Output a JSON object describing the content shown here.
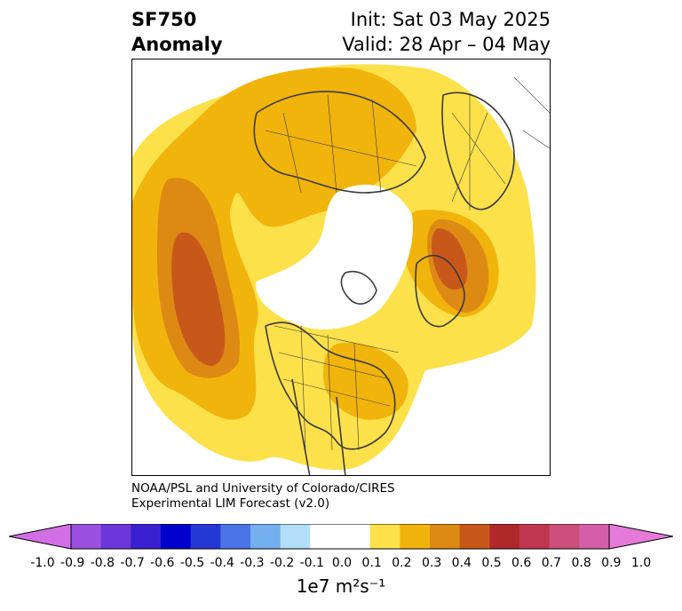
{
  "header": {
    "title_line1": "SF750",
    "title_line2": "Anomaly",
    "init_text": "Init: Sat 03 May 2025",
    "valid_text": "Valid: 28 Apr – 04 May"
  },
  "credit": {
    "line1": "NOAA/PSL and University of Colorado/CIRES",
    "line2": "Experimental LIM Forecast (v2.0)"
  },
  "colorbar": {
    "ticks": [
      "-1.0",
      "-0.9",
      "-0.8",
      "-0.7",
      "-0.6",
      "-0.5",
      "-0.4",
      "-0.3",
      "-0.2",
      "-0.1",
      "0.0",
      "0.1",
      "0.2",
      "0.3",
      "0.4",
      "0.5",
      "0.6",
      "0.7",
      "0.8",
      "0.9",
      "1.0"
    ],
    "colors": [
      "#d26fe6",
      "#9b50e0",
      "#6c36db",
      "#3a1fd1",
      "#0000cc",
      "#2538d6",
      "#4a74e6",
      "#74afef",
      "#b3def9",
      "#ffffff",
      "#ffffff",
      "#fde14b",
      "#f1b40c",
      "#dd8a14",
      "#c8581a",
      "#b0282a",
      "#c0364f",
      "#cc4f7c",
      "#d45fa8",
      "#e67ad8"
    ],
    "unit_label": "1e7 m²s⁻¹"
  },
  "map": {
    "projection": "north-polar-stereographic",
    "shading_colors": {
      "level_0_1": "#fde14b",
      "level_0_2": "#f1b40c",
      "level_0_3": "#dd8a14",
      "level_0_4": "#c8581a"
    }
  }
}
